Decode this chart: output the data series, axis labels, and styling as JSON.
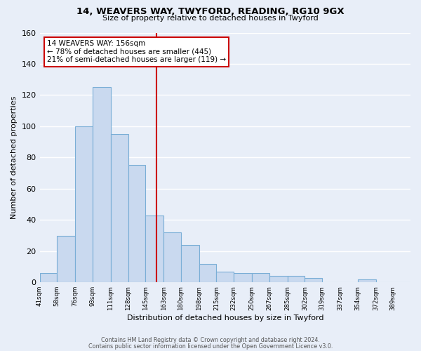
{
  "title": "14, WEAVERS WAY, TWYFORD, READING, RG10 9GX",
  "subtitle": "Size of property relative to detached houses in Twyford",
  "xlabel": "Distribution of detached houses by size in Twyford",
  "ylabel": "Number of detached properties",
  "bin_labels": [
    "41sqm",
    "58sqm",
    "76sqm",
    "93sqm",
    "111sqm",
    "128sqm",
    "145sqm",
    "163sqm",
    "180sqm",
    "198sqm",
    "215sqm",
    "232sqm",
    "250sqm",
    "267sqm",
    "285sqm",
    "302sqm",
    "319sqm",
    "337sqm",
    "354sqm",
    "372sqm",
    "389sqm"
  ],
  "bin_edges": [
    41,
    58,
    76,
    93,
    111,
    128,
    145,
    163,
    180,
    198,
    215,
    232,
    250,
    267,
    285,
    302,
    319,
    337,
    354,
    372,
    389,
    406
  ],
  "bar_heights": [
    6,
    30,
    100,
    125,
    95,
    75,
    43,
    32,
    24,
    12,
    7,
    6,
    6,
    4,
    4,
    3,
    0,
    0,
    2,
    0,
    0
  ],
  "bar_color": "#c9d9ef",
  "bar_edge_color": "#7aaed6",
  "property_size": 156,
  "vline_color": "#cc0000",
  "annotation_title": "14 WEAVERS WAY: 156sqm",
  "annotation_line1": "← 78% of detached houses are smaller (445)",
  "annotation_line2": "21% of semi-detached houses are larger (119) →",
  "annotation_box_facecolor": "#ffffff",
  "annotation_box_edgecolor": "#cc0000",
  "ylim": [
    0,
    160
  ],
  "yticks": [
    0,
    20,
    40,
    60,
    80,
    100,
    120,
    140,
    160
  ],
  "footnote1": "Contains HM Land Registry data © Crown copyright and database right 2024.",
  "footnote2": "Contains public sector information licensed under the Open Government Licence v3.0.",
  "bg_color": "#e8eef8",
  "grid_color": "#ffffff",
  "grid_linewidth": 1.0
}
